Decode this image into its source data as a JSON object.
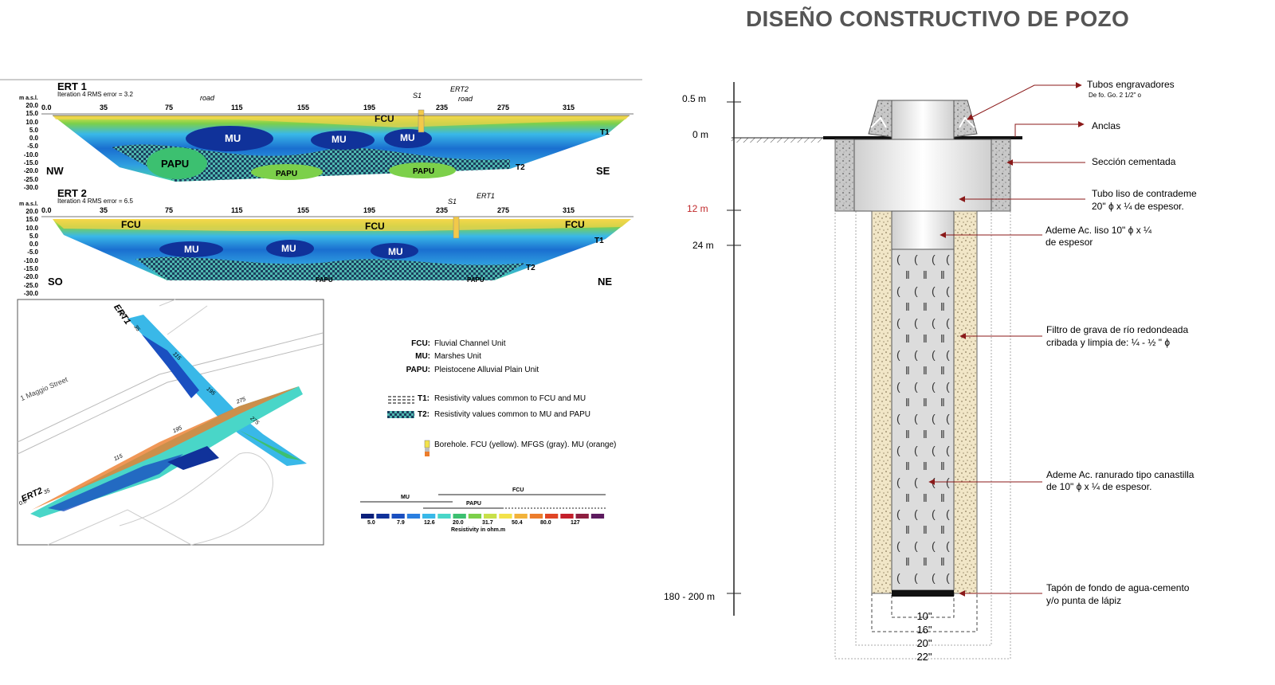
{
  "left": {
    "ert1": {
      "title": "ERT 1",
      "subtitle": "Iteration 4 RMS error = 3.2",
      "axis_label": "m a.s.l.",
      "y_ticks": [
        "20.0",
        "15.0",
        "10.0",
        "5.0",
        "0.0",
        "-5.0",
        "-10.0",
        "-15.0",
        "-20.0",
        "-25.0",
        "-30.0"
      ],
      "x_ticks": [
        "0.0",
        "35",
        "75",
        "115",
        "155",
        "195",
        "235",
        "275",
        "315"
      ],
      "left_dir": "NW",
      "right_dir": "SE",
      "annotations": {
        "road1": "road",
        "s1": "S1",
        "ert2": "ERT2",
        "road2": "road",
        "t1": "T1",
        "t2": "T2"
      },
      "units": {
        "fcu": "FCU",
        "mu1": "MU",
        "mu2": "MU",
        "mu3": "MU",
        "papu1": "PAPU",
        "papu2": "PAPU",
        "papu3": "PAPU"
      }
    },
    "ert2": {
      "title": "ERT 2",
      "subtitle": "Iteration 4 RMS error = 6.5",
      "axis_label": "m a.s.l.",
      "y_ticks": [
        "20.0",
        "15.0",
        "10.0",
        "5.0",
        "0.0",
        "-5.0",
        "-10.0",
        "-15.0",
        "-20.0",
        "-25.0",
        "-30.0"
      ],
      "x_ticks": [
        "0.0",
        "35",
        "75",
        "115",
        "155",
        "195",
        "235",
        "275",
        "315"
      ],
      "left_dir": "SO",
      "right_dir": "NE",
      "annotations": {
        "s1": "S1",
        "ert1": "ERT1",
        "t1": "T1",
        "t2": "T2"
      },
      "units": {
        "fcu1": "FCU",
        "fcu2": "FCU",
        "fcu3": "FCU",
        "mu1": "MU",
        "mu2": "MU",
        "mu3": "MU",
        "papu1": "PAPU",
        "papu2": "PAPU"
      }
    },
    "map": {
      "street": "1 Maggio Street",
      "ert1": "ERT1",
      "ert2": "ERT2",
      "labels": {
        "a": "0.0",
        "b": "35",
        "c": "115",
        "d": "195",
        "e": "275",
        "f": "0.0",
        "g": "35",
        "h": "115",
        "i": "195",
        "j": "275"
      }
    },
    "legend": {
      "fcu_key": "FCU:",
      "fcu_val": "Fluvial Channel Unit",
      "mu_key": "MU:",
      "mu_val": "Marshes Unit",
      "papu_key": "PAPU:",
      "papu_val": "Pleistocene Alluvial Plain Unit",
      "t1_key": "T1:",
      "t1_val": "Resistivity values common to FCU and MU",
      "t2_key": "T2:",
      "t2_val": "Resistivity values common to MU and PAPU",
      "borehole": "Borehole. FCU (yellow). MFGS (gray). MU (orange)"
    },
    "colorbar": {
      "mu": "MU",
      "papu": "PAPU",
      "fcu": "FCU",
      "ticks": [
        "5.0",
        "7.9",
        "12.6",
        "20.0",
        "31.7",
        "50.4",
        "80.0",
        "127"
      ],
      "caption": "Resistivity in ohm.m",
      "colors": [
        "#0a1f7a",
        "#10329a",
        "#1a4fc0",
        "#2a7fe0",
        "#39b8e8",
        "#49d6c8",
        "#3cc070",
        "#7cd04a",
        "#c8e04a",
        "#f3e24a",
        "#f2b23a",
        "#ec7d2c",
        "#e04424",
        "#c41f2a",
        "#8e1f40",
        "#5c1a5e"
      ]
    }
  },
  "right": {
    "title": "DISEÑO CONSTRUCTIVO DE POZO",
    "depths": {
      "d05": "0.5 m",
      "d0": "0 m",
      "d12": "12 m",
      "d24": "24 m",
      "d180": "180 - 200 m"
    },
    "callouts": {
      "tubos": "Tubos engravadores",
      "tubos_sub": "De fo. Go. 2 1/2\"  o",
      "anclas": "Anclas",
      "seccion": "Sección cementada",
      "tubo_liso_1": "Tubo liso de contrademe",
      "tubo_liso_2": "20\" ϕ x ¼ de espesor.",
      "ademe_liso_1": "Ademe Ac. liso  10\" ϕ  x ¼",
      "ademe_liso_2": "de espesor",
      "filtro_1": "Filtro de grava de río redondeada",
      "filtro_2": "cribada  y limpia de:  ¼ - ½ \" ϕ",
      "ademe_ran_1": "Ademe Ac. ranurado  tipo canastilla",
      "ademe_ran_2": "de 10\" ϕ x ¼  de espesor.",
      "tapon_1": "Tapón de fondo de agua-cemento",
      "tapon_2": "y/o punta de lápiz"
    },
    "diameters": {
      "d10": "10\"",
      "d16": "16\"",
      "d20": "20\"",
      "d22": "22\""
    },
    "colors": {
      "arrow": "#8b1a1a",
      "depth_red": "#c0282a"
    }
  }
}
